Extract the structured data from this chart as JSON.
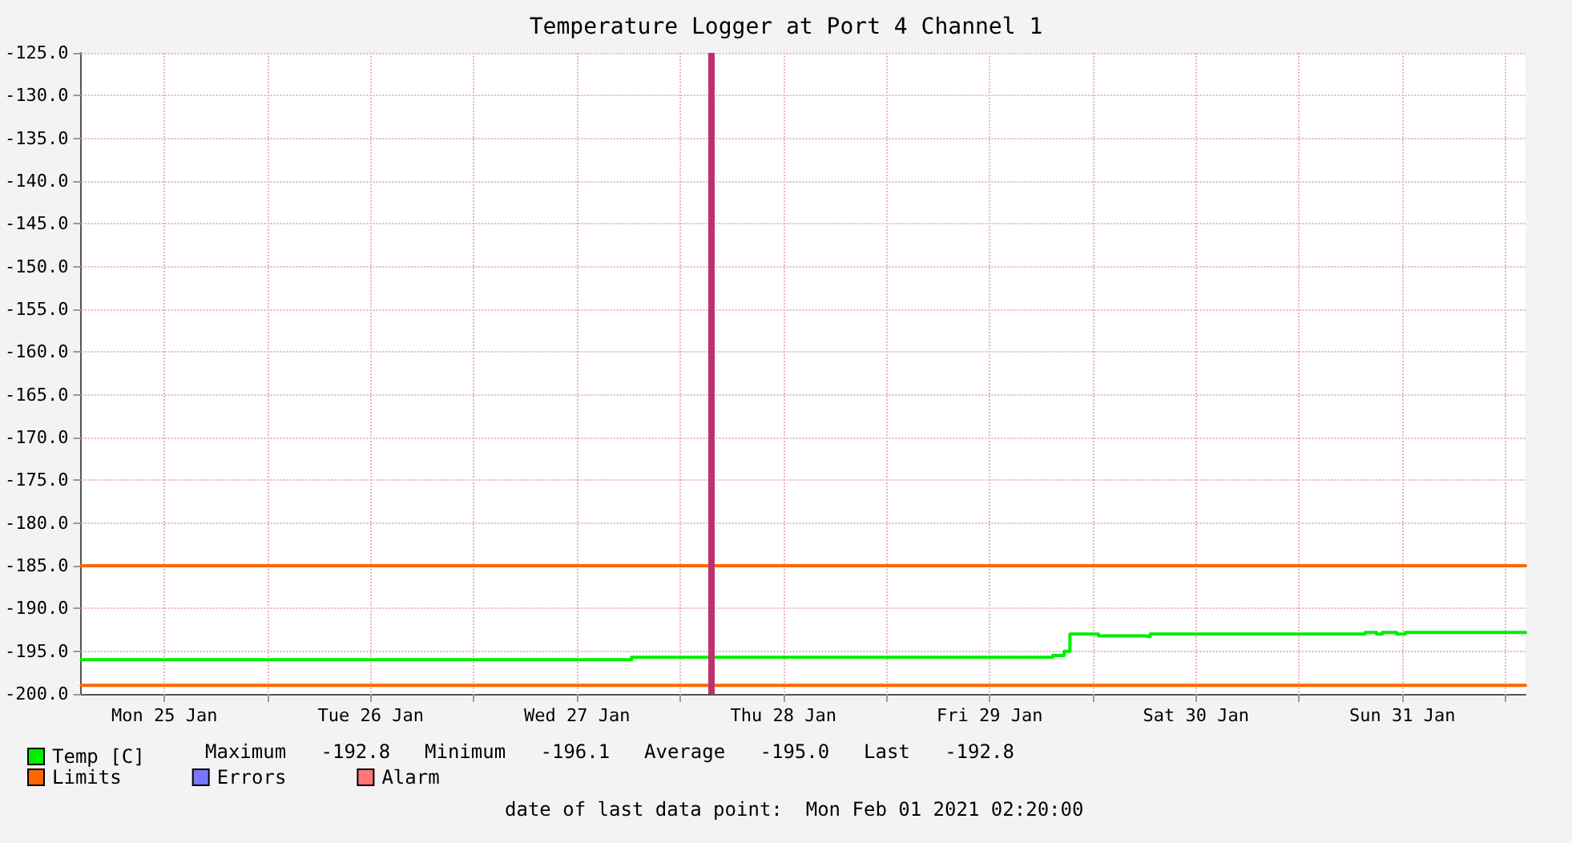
{
  "chart_data": {
    "type": "step",
    "title": "Temperature Logger at Port 4 Channel 1",
    "xlim": [
      "2021-01-25T02:20",
      "2021-02-01T02:20"
    ],
    "xticks": [
      {
        "value": "2021-01-25T12:00",
        "label": "Mon 25 Jan"
      },
      {
        "value": "2021-01-26T00:00",
        "label": null
      },
      {
        "value": "2021-01-26T12:00",
        "label": "Tue 26 Jan"
      },
      {
        "value": "2021-01-27T00:00",
        "label": null
      },
      {
        "value": "2021-01-27T12:00",
        "label": "Wed 27 Jan"
      },
      {
        "value": "2021-01-28T00:00",
        "label": null
      },
      {
        "value": "2021-01-28T12:00",
        "label": "Thu 28 Jan"
      },
      {
        "value": "2021-01-29T00:00",
        "label": null
      },
      {
        "value": "2021-01-29T12:00",
        "label": "Fri 29 Jan"
      },
      {
        "value": "2021-01-30T00:00",
        "label": null
      },
      {
        "value": "2021-01-30T12:00",
        "label": "Sat 30 Jan"
      },
      {
        "value": "2021-01-31T00:00",
        "label": null
      },
      {
        "value": "2021-01-31T12:00",
        "label": "Sun 31 Jan"
      },
      {
        "value": "2021-02-01T00:00",
        "label": null
      }
    ],
    "ylim": [
      -200,
      -125
    ],
    "yticks": [
      {
        "value": -200,
        "label": "-200.0"
      },
      {
        "value": -195,
        "label": "-195.0"
      },
      {
        "value": -190,
        "label": "-190.0"
      },
      {
        "value": -185,
        "label": "-185.0"
      },
      {
        "value": -180,
        "label": "-180.0"
      },
      {
        "value": -175,
        "label": "-175.0"
      },
      {
        "value": -170,
        "label": "-170.0"
      },
      {
        "value": -165,
        "label": "-165.0"
      },
      {
        "value": -160,
        "label": "-160.0"
      },
      {
        "value": -155,
        "label": "-155.0"
      },
      {
        "value": -150,
        "label": "-150.0"
      },
      {
        "value": -145,
        "label": "-145.0"
      },
      {
        "value": -140,
        "label": "-140.0"
      },
      {
        "value": -135,
        "label": "-135.0"
      },
      {
        "value": -130,
        "label": "-130.0"
      },
      {
        "value": -125,
        "label": "-125.0"
      }
    ],
    "grid": true,
    "legend": "bottom left",
    "marker": "none",
    "line_style": "solid",
    "series": [
      {
        "name": "Temp [C]",
        "color": "#00ee00",
        "x": [
          "2021-01-25T02:20",
          "2021-01-27T18:20",
          "2021-01-29T19:20",
          "2021-01-29T20:40",
          "2021-01-29T21:20",
          "2021-01-30T00:40",
          "2021-01-30T06:00",
          "2021-01-30T06:40",
          "2021-01-31T07:40",
          "2021-01-31T09:00",
          "2021-01-31T09:40",
          "2021-01-31T11:20",
          "2021-01-31T12:20",
          "2021-02-01T02:20"
        ],
        "values": [
          -196.0,
          -195.7,
          -195.5,
          -195.0,
          -193.0,
          -193.2,
          -193.3,
          -193.0,
          -192.8,
          -193.0,
          -192.8,
          -193.0,
          -192.8,
          -192.8
        ]
      },
      {
        "name": "Limits",
        "type": "line",
        "color": "#ff6600",
        "x": [
          "2021-01-25T02:20",
          "2021-02-01T02:20"
        ],
        "values": [
          -185,
          -185
        ]
      },
      {
        "type": "line",
        "color": "#ff6600",
        "x": [
          "2021-01-25T02:20",
          "2021-02-01T02:20"
        ],
        "values": [
          -199,
          -199
        ]
      },
      {
        "name": "Errors",
        "type": "line",
        "color": "#7777ff"
      },
      {
        "name": "Alarm",
        "type": "line",
        "color": "#ff7777"
      }
    ],
    "ref_lines": [
      {
        "axis": "x",
        "value": "2021-01-28T03:40",
        "label": null,
        "color": "#c0306f"
      }
    ],
    "annotations": [
      "Maximum   -192.8",
      "Minimum   -196.1",
      "Average   -195.0",
      "Last   -192.8",
      "date of last data point:  Mon Feb 01 2021 02:20:00"
    ]
  }
}
